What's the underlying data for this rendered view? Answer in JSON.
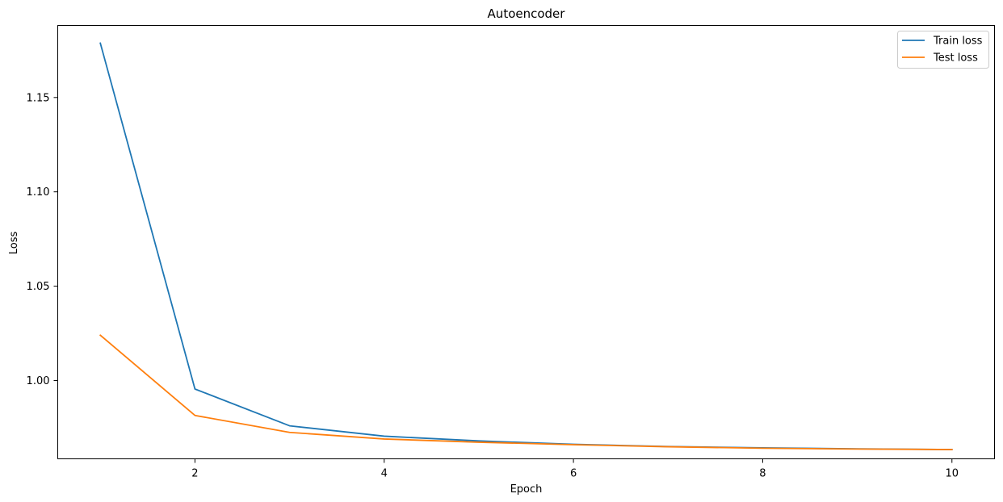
{
  "chart_data": {
    "type": "line",
    "title": "Autoencoder",
    "xlabel": "Epoch",
    "ylabel": "Loss",
    "xlim": [
      0.55,
      10.45
    ],
    "ylim": [
      0.9585,
      1.1882
    ],
    "x_ticks": [
      2,
      4,
      6,
      8,
      10
    ],
    "y_ticks": [
      1.0,
      1.05,
      1.1,
      1.15
    ],
    "x_tick_labels": [
      "2",
      "4",
      "6",
      "8",
      "10"
    ],
    "y_tick_labels": [
      "1.00",
      "1.05",
      "1.10",
      "1.15"
    ],
    "grid": false,
    "legend_position": "top-right",
    "x": [
      1,
      2,
      3,
      4,
      5,
      6,
      7,
      8,
      9,
      10
    ],
    "series": [
      {
        "name": "Train loss",
        "color": "#1f77b4",
        "values": [
          1.1788,
          0.9955,
          0.976,
          0.9705,
          0.968,
          0.9662,
          0.965,
          0.9643,
          0.9638,
          0.9634
        ]
      },
      {
        "name": "Test loss",
        "color": "#ff7f0e",
        "values": [
          1.024,
          0.9815,
          0.9725,
          0.969,
          0.9673,
          0.966,
          0.9649,
          0.9641,
          0.9637,
          0.9634
        ]
      }
    ]
  }
}
